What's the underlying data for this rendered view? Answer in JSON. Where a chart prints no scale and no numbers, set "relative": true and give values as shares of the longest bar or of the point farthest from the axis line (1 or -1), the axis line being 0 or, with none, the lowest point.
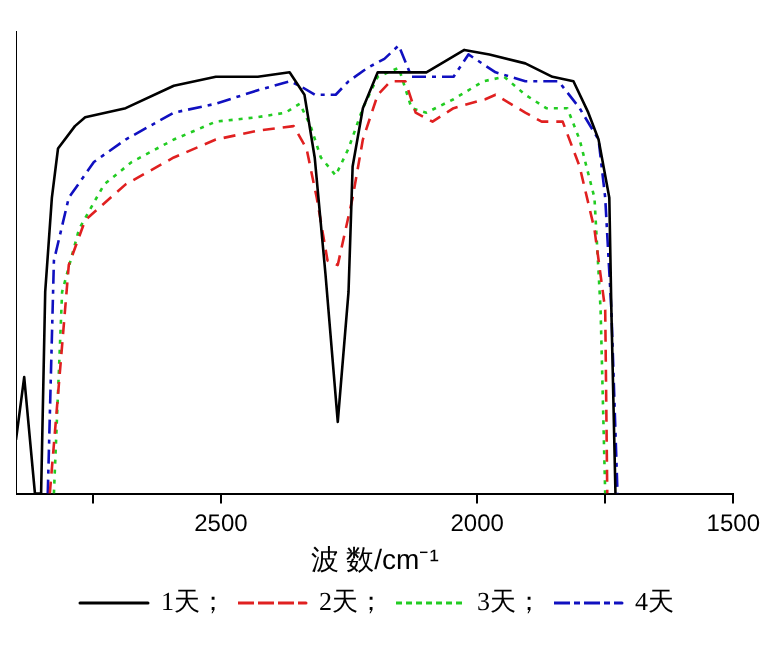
{
  "chart_data": {
    "type": "line",
    "xlabel": "波 数/cm⁻¹",
    "relative": true,
    "xlim": [
      2900,
      1500
    ],
    "xticks": [
      {
        "value": 2750,
        "label": null
      },
      2500,
      2000,
      {
        "value": 1750,
        "label": null
      },
      1500
    ],
    "legend": "bottom",
    "grid": false,
    "marker": "none",
    "series": [
      {
        "name": "1天；",
        "color": "#000000",
        "line_style": "solid",
        "x": [
          2900,
          2884,
          2863,
          2851,
          2843,
          2830,
          2818,
          2785,
          2765,
          2686,
          2592,
          2510,
          2428,
          2366,
          2337,
          2317,
          2296,
          2272,
          2251,
          2243,
          2223,
          2194,
          2153,
          2099,
          2025,
          1976,
          1906,
          1853,
          1812,
          1783,
          1763,
          1742,
          1738,
          1730
        ],
        "values": [
          0.12,
          0.26,
          0,
          0,
          0.45,
          0.66,
          0.77,
          0.82,
          0.84,
          0.86,
          0.91,
          0.93,
          0.93,
          0.94,
          0.89,
          0.75,
          0.49,
          0.16,
          0.45,
          0.73,
          0.86,
          0.94,
          0.94,
          0.94,
          0.99,
          0.98,
          0.96,
          0.93,
          0.92,
          0.85,
          0.79,
          0.66,
          0.41,
          0
        ]
      },
      {
        "name": "2天；",
        "color": "#e02020",
        "line_style": "dashed",
        "x": [
          2834,
          2797,
          2765,
          2686,
          2592,
          2510,
          2428,
          2358,
          2333,
          2313,
          2292,
          2272,
          2243,
          2223,
          2194,
          2169,
          2140,
          2120,
          2087,
          2046,
          1984,
          1964,
          1906,
          1874,
          1833,
          1800,
          1771,
          1750,
          1746
        ],
        "values": [
          0,
          0.51,
          0.61,
          0.69,
          0.75,
          0.79,
          0.81,
          0.82,
          0.77,
          0.66,
          0.52,
          0.51,
          0.66,
          0.79,
          0.89,
          0.92,
          0.92,
          0.85,
          0.83,
          0.86,
          0.88,
          0.89,
          0.85,
          0.83,
          0.83,
          0.73,
          0.59,
          0.41,
          0
        ]
      },
      {
        "name": "3天；",
        "color": "#22cc22",
        "line_style": "dotted",
        "x": [
          2826,
          2810,
          2777,
          2728,
          2674,
          2592,
          2510,
          2428,
          2374,
          2346,
          2325,
          2305,
          2276,
          2251,
          2223,
          2194,
          2153,
          2128,
          2099,
          2046,
          1988,
          1947,
          1906,
          1865,
          1824,
          1800,
          1771,
          1759,
          1750
        ],
        "values": [
          0,
          0.45,
          0.59,
          0.69,
          0.74,
          0.79,
          0.83,
          0.84,
          0.85,
          0.87,
          0.82,
          0.75,
          0.71,
          0.77,
          0.86,
          0.93,
          0.95,
          0.86,
          0.85,
          0.88,
          0.92,
          0.93,
          0.89,
          0.86,
          0.86,
          0.79,
          0.66,
          0.41,
          0
        ]
      },
      {
        "name": "4天",
        "color": "#1010c0",
        "line_style": "dashdot",
        "x": [
          2838,
          2826,
          2797,
          2748,
          2686,
          2592,
          2510,
          2428,
          2366,
          2346,
          2317,
          2276,
          2251,
          2214,
          2181,
          2153,
          2128,
          2046,
          2017,
          1964,
          1906,
          1841,
          1800,
          1763,
          1750,
          1738,
          1726
        ],
        "values": [
          0,
          0.52,
          0.66,
          0.74,
          0.79,
          0.85,
          0.87,
          0.9,
          0.92,
          0.91,
          0.89,
          0.89,
          0.92,
          0.95,
          0.97,
          1,
          0.93,
          0.93,
          0.98,
          0.94,
          0.92,
          0.92,
          0.86,
          0.79,
          0.66,
          0.41,
          0
        ]
      }
    ]
  }
}
